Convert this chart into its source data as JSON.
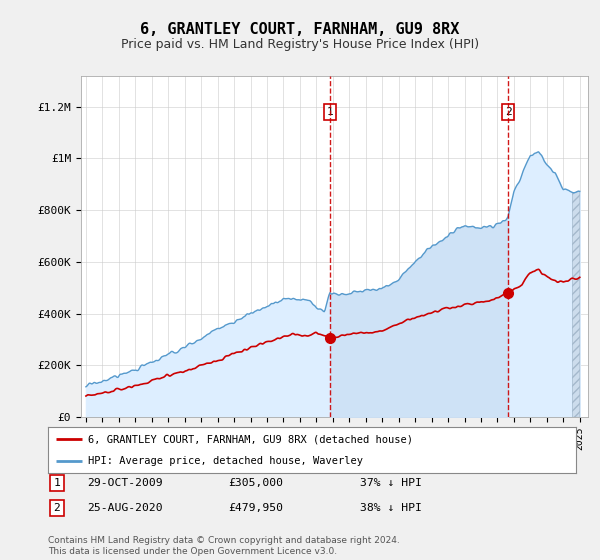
{
  "title": "6, GRANTLEY COURT, FARNHAM, GU9 8RX",
  "subtitle": "Price paid vs. HM Land Registry's House Price Index (HPI)",
  "title_fontsize": 11,
  "subtitle_fontsize": 9,
  "ylabel_ticks": [
    "£0",
    "£200K",
    "£400K",
    "£600K",
    "£800K",
    "£1M",
    "£1.2M"
  ],
  "ytick_vals": [
    0,
    200000,
    400000,
    600000,
    800000,
    1000000,
    1200000
  ],
  "ylim": [
    0,
    1320000
  ],
  "xlim_start": 1994.7,
  "xlim_end": 2025.5,
  "xtick_years": [
    1995,
    1996,
    1997,
    1998,
    1999,
    2000,
    2001,
    2002,
    2003,
    2004,
    2005,
    2006,
    2007,
    2008,
    2009,
    2010,
    2011,
    2012,
    2013,
    2014,
    2015,
    2016,
    2017,
    2018,
    2019,
    2020,
    2021,
    2022,
    2023,
    2024,
    2025
  ],
  "hpi_fill_color": "#ddeeff",
  "hpi_line_color": "#5599cc",
  "price_paid_color": "#cc0000",
  "hpi_shade_between_color": "#cce0f5",
  "sale1_year": 2009.83,
  "sale1_price": 305000,
  "sale2_year": 2020.65,
  "sale2_price": 479950,
  "legend_label_red": "6, GRANTLEY COURT, FARNHAM, GU9 8RX (detached house)",
  "legend_label_blue": "HPI: Average price, detached house, Waverley",
  "note1_num": "1",
  "note1_date": "29-OCT-2009",
  "note1_price": "£305,000",
  "note1_pct": "37% ↓ HPI",
  "note2_num": "2",
  "note2_date": "25-AUG-2020",
  "note2_price": "£479,950",
  "note2_pct": "38% ↓ HPI",
  "footer": "Contains HM Land Registry data © Crown copyright and database right 2024.\nThis data is licensed under the Open Government Licence v3.0.",
  "background_color": "#f0f0f0",
  "plot_bg_color": "#ffffff"
}
